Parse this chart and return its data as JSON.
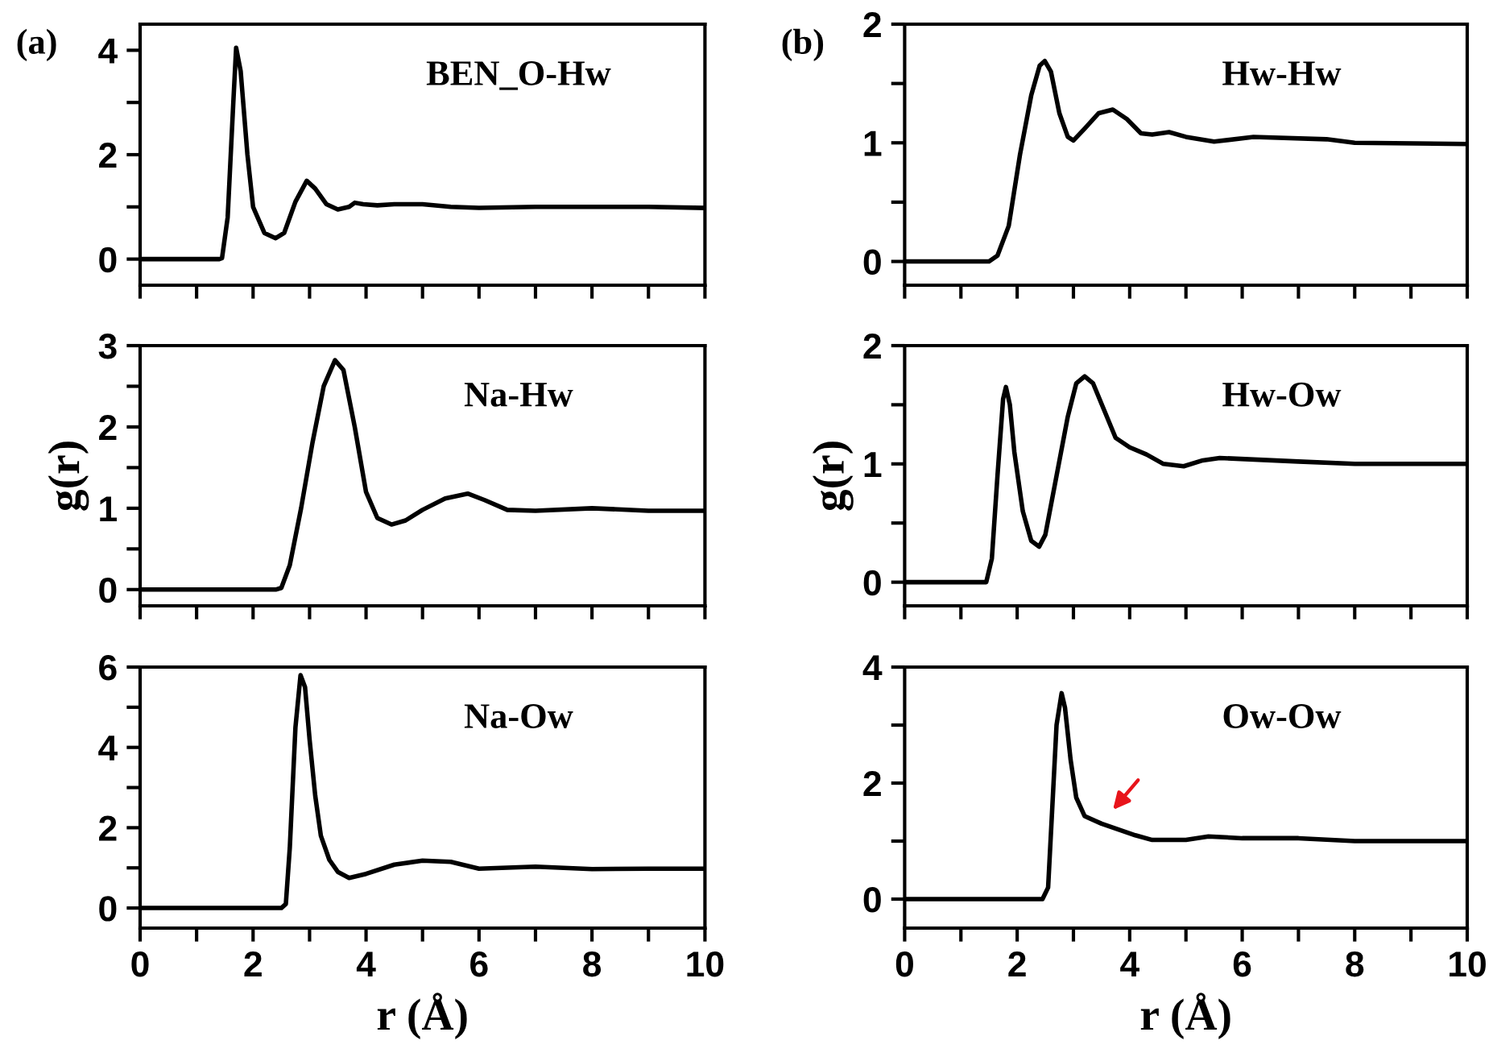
{
  "chart_data": [
    {
      "type": "line",
      "title": "BEN_O-Hw",
      "annotations": [
        "(a)"
      ],
      "tick_labels": "y",
      "xlim": [
        0,
        10
      ],
      "xticks": [
        0,
        {
          "value": 1,
          "label": null
        },
        2,
        {
          "value": 3,
          "label": null
        },
        4,
        {
          "value": 5,
          "label": null
        },
        6,
        {
          "value": 7,
          "label": null
        },
        8,
        {
          "value": 9,
          "label": null
        },
        10
      ],
      "ylim": [
        -0.5,
        4.5
      ],
      "yticks": [
        0,
        {
          "value": 1,
          "label": null
        },
        2,
        {
          "value": 3,
          "label": null
        },
        4
      ],
      "grid": false,
      "series": [
        {
          "color": "#000000",
          "x": [
            0,
            1.4,
            1.45,
            1.55,
            1.65,
            1.7,
            1.78,
            1.9,
            2.0,
            2.2,
            2.4,
            2.55,
            2.75,
            2.95,
            3.1,
            3.3,
            3.5,
            3.7,
            3.8,
            3.95,
            4.2,
            4.5,
            5.0,
            5.5,
            6,
            7,
            8,
            9,
            10
          ],
          "values": [
            0,
            0,
            0.02,
            0.8,
            3,
            4.05,
            3.6,
            2,
            1.0,
            0.5,
            0.4,
            0.5,
            1.1,
            1.5,
            1.35,
            1.05,
            0.95,
            1.0,
            1.08,
            1.05,
            1.03,
            1.05,
            1.05,
            1.0,
            0.98,
            1.0,
            1.0,
            1.0,
            0.98
          ]
        }
      ]
    },
    {
      "type": "line",
      "title": "Na-Hw",
      "ylabel": "g(r)",
      "tick_labels": "y",
      "xlim": [
        0,
        10
      ],
      "xticks": [
        0,
        {
          "value": 1,
          "label": null
        },
        2,
        {
          "value": 3,
          "label": null
        },
        4,
        {
          "value": 5,
          "label": null
        },
        6,
        {
          "value": 7,
          "label": null
        },
        8,
        {
          "value": 9,
          "label": null
        },
        10
      ],
      "ylim": [
        -0.2,
        3
      ],
      "yticks": [
        0,
        {
          "value": 0.5,
          "label": null
        },
        1,
        {
          "value": 1.5,
          "label": null
        },
        2,
        {
          "value": 2.5,
          "label": null
        },
        3
      ],
      "grid": false,
      "series": [
        {
          "color": "#000000",
          "x": [
            0,
            2.4,
            2.5,
            2.65,
            2.85,
            3.05,
            3.25,
            3.45,
            3.6,
            3.8,
            4.0,
            4.2,
            4.45,
            4.7,
            5.0,
            5.4,
            5.8,
            6.1,
            6.5,
            7,
            8,
            9,
            10
          ],
          "values": [
            0,
            0,
            0.02,
            0.3,
            1.0,
            1.8,
            2.5,
            2.82,
            2.7,
            2.0,
            1.2,
            0.88,
            0.8,
            0.85,
            0.98,
            1.12,
            1.18,
            1.1,
            0.98,
            0.97,
            1.0,
            0.97,
            0.97
          ]
        }
      ]
    },
    {
      "type": "line",
      "title": "Na-Ow",
      "xlabel": "r (Å)",
      "xlim": [
        0,
        10
      ],
      "xticks": [
        0,
        {
          "value": 1,
          "label": null
        },
        2,
        {
          "value": 3,
          "label": null
        },
        4,
        {
          "value": 5,
          "label": null
        },
        6,
        {
          "value": 7,
          "label": null
        },
        8,
        {
          "value": 9,
          "label": null
        },
        10
      ],
      "ylim": [
        -0.5,
        6
      ],
      "yticks": [
        0,
        {
          "value": 1,
          "label": null
        },
        2,
        {
          "value": 3,
          "label": null
        },
        4,
        {
          "value": 5,
          "label": null
        },
        6
      ],
      "grid": false,
      "series": [
        {
          "color": "#000000",
          "x": [
            0,
            2.5,
            2.58,
            2.65,
            2.75,
            2.84,
            2.92,
            3.0,
            3.1,
            3.2,
            3.35,
            3.5,
            3.7,
            4.0,
            4.5,
            5.0,
            5.5,
            6.0,
            7,
            8,
            9,
            10
          ],
          "values": [
            0,
            0,
            0.1,
            1.5,
            4.5,
            5.8,
            5.5,
            4.2,
            2.8,
            1.8,
            1.2,
            0.9,
            0.75,
            0.85,
            1.08,
            1.18,
            1.15,
            0.98,
            1.03,
            0.97,
            0.98,
            0.98
          ]
        }
      ]
    },
    {
      "type": "line",
      "title": "Hw-Hw",
      "annotations": [
        "(b)"
      ],
      "tick_labels": "y",
      "xlim": [
        0,
        10
      ],
      "xticks": [
        0,
        {
          "value": 1,
          "label": null
        },
        2,
        {
          "value": 3,
          "label": null
        },
        4,
        {
          "value": 5,
          "label": null
        },
        6,
        {
          "value": 7,
          "label": null
        },
        8,
        {
          "value": 9,
          "label": null
        },
        10
      ],
      "ylim": [
        -0.2,
        2
      ],
      "yticks": [
        0,
        {
          "value": 0.5,
          "label": null
        },
        1,
        {
          "value": 1.5,
          "label": null
        },
        2
      ],
      "grid": false,
      "series": [
        {
          "color": "#000000",
          "x": [
            0,
            1.5,
            1.65,
            1.85,
            2.05,
            2.25,
            2.4,
            2.49,
            2.6,
            2.75,
            2.9,
            3.0,
            3.2,
            3.45,
            3.7,
            3.95,
            4.2,
            4.4,
            4.7,
            5.0,
            5.5,
            6.2,
            7.5,
            8.0,
            10
          ],
          "values": [
            0,
            0,
            0.05,
            0.3,
            0.9,
            1.4,
            1.65,
            1.69,
            1.6,
            1.25,
            1.05,
            1.02,
            1.12,
            1.25,
            1.28,
            1.2,
            1.08,
            1.07,
            1.09,
            1.05,
            1.01,
            1.05,
            1.03,
            1.0,
            0.99
          ]
        }
      ]
    },
    {
      "type": "line",
      "title": "Hw-Ow",
      "ylabel": "g(r)",
      "tick_labels": "y",
      "xlim": [
        0,
        10
      ],
      "xticks": [
        0,
        {
          "value": 1,
          "label": null
        },
        2,
        {
          "value": 3,
          "label": null
        },
        4,
        {
          "value": 5,
          "label": null
        },
        6,
        {
          "value": 7,
          "label": null
        },
        8,
        {
          "value": 9,
          "label": null
        },
        10
      ],
      "ylim": [
        -0.2,
        2
      ],
      "yticks": [
        0,
        {
          "value": 0.5,
          "label": null
        },
        1,
        {
          "value": 1.5,
          "label": null
        },
        2
      ],
      "grid": false,
      "series": [
        {
          "color": "#000000",
          "x": [
            0,
            1.45,
            1.55,
            1.65,
            1.75,
            1.8,
            1.87,
            1.95,
            2.1,
            2.25,
            2.39,
            2.5,
            2.7,
            2.9,
            3.05,
            3.2,
            3.35,
            3.55,
            3.75,
            4.0,
            4.3,
            4.6,
            4.96,
            5.3,
            5.6,
            7,
            8,
            10
          ],
          "values": [
            0,
            0,
            0.2,
            0.9,
            1.55,
            1.65,
            1.5,
            1.1,
            0.6,
            0.35,
            0.3,
            0.4,
            0.9,
            1.4,
            1.68,
            1.74,
            1.68,
            1.45,
            1.22,
            1.14,
            1.08,
            1.0,
            0.98,
            1.03,
            1.05,
            1.02,
            1.0,
            1.0
          ]
        }
      ]
    },
    {
      "type": "line",
      "title": "Ow-Ow",
      "xlabel": "r (Å)",
      "xlim": [
        0,
        10
      ],
      "xticks": [
        0,
        {
          "value": 1,
          "label": null
        },
        2,
        {
          "value": 3,
          "label": null
        },
        4,
        {
          "value": 5,
          "label": null
        },
        6,
        {
          "value": 7,
          "label": null
        },
        8,
        {
          "value": 9,
          "label": null
        },
        10
      ],
      "ylim": [
        -0.5,
        4
      ],
      "yticks": [
        0,
        {
          "value": 1,
          "label": null
        },
        2,
        {
          "value": 3,
          "label": null
        },
        4
      ],
      "grid": false,
      "series": [
        {
          "color": "#000000",
          "x": [
            0,
            2.45,
            2.55,
            2.62,
            2.7,
            2.79,
            2.85,
            2.95,
            3.05,
            3.2,
            3.5,
            3.8,
            4.1,
            4.4,
            5.0,
            5.4,
            6,
            7,
            8,
            10
          ],
          "values": [
            0,
            0,
            0.2,
            1.5,
            3.0,
            3.55,
            3.3,
            2.4,
            1.75,
            1.43,
            1.3,
            1.2,
            1.1,
            1.02,
            1.02,
            1.08,
            1.05,
            1.05,
            1.0,
            1.0
          ]
        }
      ]
    }
  ]
}
